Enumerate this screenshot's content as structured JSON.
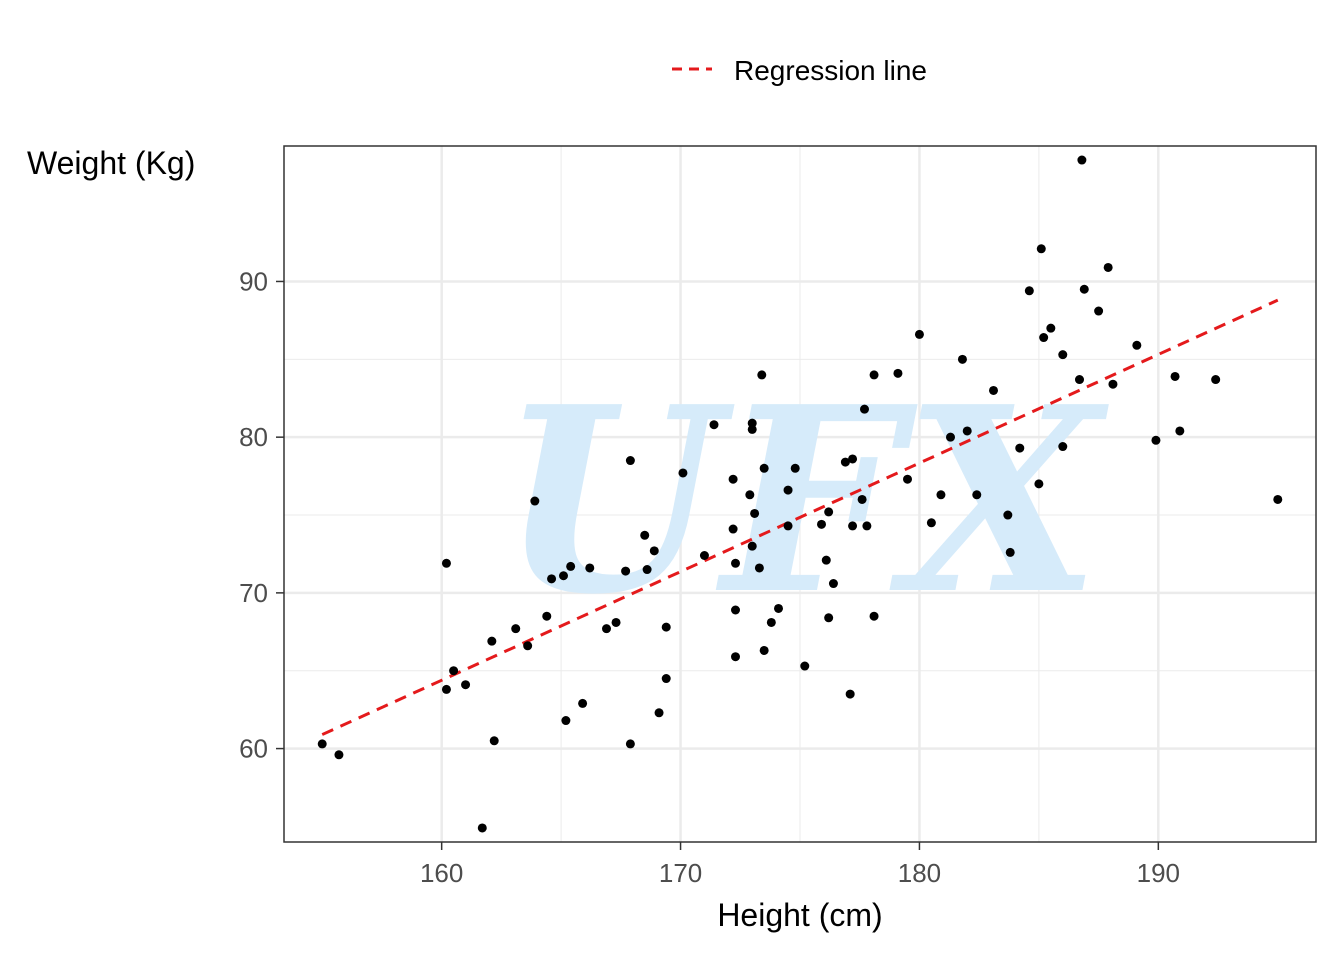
{
  "chart_data": {
    "type": "scatter",
    "xlabel": "Height (cm)",
    "ylabel": "Weight (Kg)",
    "xlim": [
      153.4,
      196.6
    ],
    "ylim": [
      54.0,
      98.7
    ],
    "x_ticks": [
      160,
      170,
      180,
      190
    ],
    "y_ticks": [
      60,
      70,
      80,
      90
    ],
    "grid": true,
    "legend": {
      "position": "top",
      "entries": [
        {
          "label": "Regression line",
          "color": "#e41a1c",
          "style": "dashed"
        }
      ]
    },
    "watermark": "UFX",
    "colors": {
      "points": "#000000",
      "regression": "#e41a1c",
      "watermark": "#d6ebfa",
      "grid": "#ebebeb"
    },
    "regression_line": {
      "x": [
        155.0,
        195.0
      ],
      "y": [
        60.9,
        88.8
      ]
    },
    "series": [
      {
        "points": [
          [
            155.0,
            60.3
          ],
          [
            155.7,
            59.6
          ],
          [
            160.2,
            71.9
          ],
          [
            160.2,
            63.8
          ],
          [
            160.5,
            65.0
          ],
          [
            161.0,
            64.1
          ],
          [
            161.7,
            54.9
          ],
          [
            162.1,
            66.9
          ],
          [
            162.2,
            60.5
          ],
          [
            163.1,
            67.7
          ],
          [
            163.6,
            66.6
          ],
          [
            163.9,
            75.9
          ],
          [
            164.4,
            68.5
          ],
          [
            164.6,
            70.9
          ],
          [
            165.1,
            71.1
          ],
          [
            165.2,
            61.8
          ],
          [
            165.4,
            71.7
          ],
          [
            165.9,
            62.9
          ],
          [
            166.2,
            71.6
          ],
          [
            166.9,
            67.7
          ],
          [
            167.3,
            68.1
          ],
          [
            167.7,
            71.4
          ],
          [
            167.9,
            78.5
          ],
          [
            167.9,
            60.3
          ],
          [
            168.5,
            73.7
          ],
          [
            168.6,
            71.5
          ],
          [
            168.9,
            72.7
          ],
          [
            169.1,
            62.3
          ],
          [
            169.4,
            64.5
          ],
          [
            169.4,
            67.8
          ],
          [
            170.1,
            77.7
          ],
          [
            171.0,
            72.4
          ],
          [
            171.4,
            80.8
          ],
          [
            172.2,
            77.3
          ],
          [
            172.2,
            74.1
          ],
          [
            172.3,
            65.9
          ],
          [
            172.3,
            71.9
          ],
          [
            172.3,
            68.9
          ],
          [
            172.9,
            76.3
          ],
          [
            173.0,
            80.9
          ],
          [
            173.0,
            80.5
          ],
          [
            173.1,
            75.1
          ],
          [
            173.0,
            73.0
          ],
          [
            173.3,
            71.6
          ],
          [
            173.4,
            84.0
          ],
          [
            173.5,
            78.0
          ],
          [
            173.5,
            66.3
          ],
          [
            173.8,
            68.1
          ],
          [
            174.1,
            69.0
          ],
          [
            174.5,
            76.6
          ],
          [
            174.5,
            74.3
          ],
          [
            174.8,
            78.0
          ],
          [
            175.2,
            65.3
          ],
          [
            175.9,
            74.4
          ],
          [
            176.1,
            72.1
          ],
          [
            176.2,
            75.2
          ],
          [
            176.2,
            68.4
          ],
          [
            176.4,
            70.6
          ],
          [
            176.9,
            78.4
          ],
          [
            177.1,
            63.5
          ],
          [
            177.2,
            78.6
          ],
          [
            177.2,
            74.3
          ],
          [
            177.6,
            76.0
          ],
          [
            177.7,
            81.8
          ],
          [
            177.8,
            74.3
          ],
          [
            178.1,
            84.0
          ],
          [
            178.1,
            68.5
          ],
          [
            179.1,
            84.1
          ],
          [
            179.5,
            77.3
          ],
          [
            180.0,
            86.6
          ],
          [
            180.5,
            74.5
          ],
          [
            180.9,
            76.3
          ],
          [
            181.3,
            80.0
          ],
          [
            181.8,
            85.0
          ],
          [
            182.0,
            80.4
          ],
          [
            182.4,
            76.3
          ],
          [
            183.1,
            83.0
          ],
          [
            183.7,
            75.0
          ],
          [
            183.8,
            72.6
          ],
          [
            184.2,
            79.3
          ],
          [
            184.6,
            89.4
          ],
          [
            185.0,
            77.0
          ],
          [
            185.1,
            92.1
          ],
          [
            185.2,
            86.4
          ],
          [
            185.5,
            87.0
          ],
          [
            186.0,
            85.3
          ],
          [
            186.0,
            79.4
          ],
          [
            186.7,
            83.7
          ],
          [
            186.8,
            97.8
          ],
          [
            186.9,
            89.5
          ],
          [
            187.5,
            88.1
          ],
          [
            187.9,
            90.9
          ],
          [
            188.1,
            83.4
          ],
          [
            189.1,
            85.9
          ],
          [
            189.9,
            79.8
          ],
          [
            190.7,
            83.9
          ],
          [
            190.9,
            80.4
          ],
          [
            192.4,
            83.7
          ],
          [
            195.0,
            76.0
          ]
        ]
      }
    ]
  }
}
